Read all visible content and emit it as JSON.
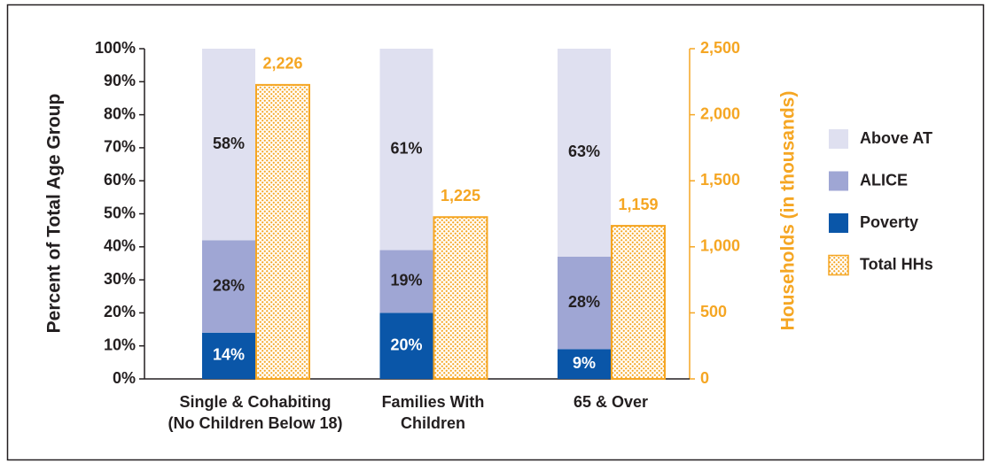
{
  "chart_data": {
    "type": "bar",
    "stacked": true,
    "y_title": "Percent of Total Age Group",
    "y2_title": "Households (in thousands)",
    "categories": [
      [
        "Single & Cohabiting",
        "(No Children Below 18)"
      ],
      [
        "Families With",
        "Children"
      ],
      [
        "65 & Over"
      ]
    ],
    "series": [
      {
        "name": "Poverty",
        "color": "#0a56a8",
        "label_color": "#ffffff",
        "values": [
          14,
          20,
          9
        ],
        "value_labels": [
          "14%",
          "20%",
          "9%"
        ]
      },
      {
        "name": "ALICE",
        "color": "#9fa6d4",
        "label_color": "#231f20",
        "values": [
          28,
          19,
          28
        ],
        "value_labels": [
          "28%",
          "19%",
          "28%"
        ]
      },
      {
        "name": "Above AT",
        "color": "#dfe0f0",
        "label_color": "#231f20",
        "values": [
          58,
          61,
          63
        ],
        "value_labels": [
          "58%",
          "61%",
          "63%"
        ]
      },
      {
        "name": "Total HHs",
        "color": "#f5a623",
        "label_color": "#f5a623",
        "axis": "y2",
        "values": [
          2226,
          1225,
          1159
        ],
        "value_labels": [
          "2,226",
          "1,225",
          "1,159"
        ]
      }
    ],
    "ylim": [
      0,
      100
    ],
    "yticks": [
      {
        "value": 0,
        "label": "0%"
      },
      {
        "value": 10,
        "label": "10%"
      },
      {
        "value": 20,
        "label": "20%"
      },
      {
        "value": 30,
        "label": "30%"
      },
      {
        "value": 40,
        "label": "40%"
      },
      {
        "value": 50,
        "label": "50%"
      },
      {
        "value": 60,
        "label": "60%"
      },
      {
        "value": 70,
        "label": "70%"
      },
      {
        "value": 80,
        "label": "80%"
      },
      {
        "value": 90,
        "label": "90%"
      },
      {
        "value": 100,
        "label": "100%"
      }
    ],
    "y2lim": [
      0,
      2500
    ],
    "y2ticks": [
      0,
      500,
      {
        "value": 1000,
        "label": "1,000"
      },
      {
        "value": 1500,
        "label": "1,500"
      },
      {
        "value": 2000,
        "label": "2,000"
      },
      {
        "value": 2500,
        "label": "2,500"
      }
    ],
    "y2_color": "#f5a623",
    "grid": false,
    "legend": "right"
  }
}
